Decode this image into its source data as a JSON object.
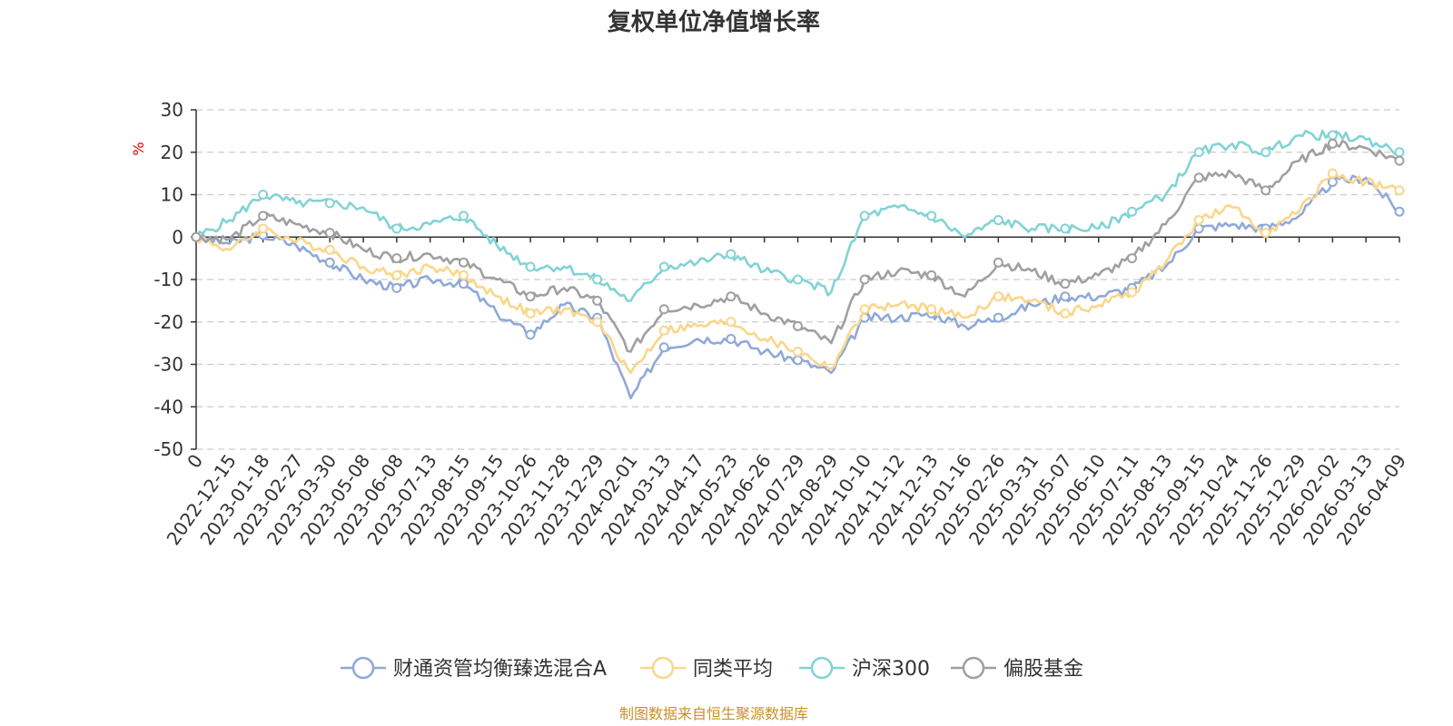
{
  "chart_data": {
    "type": "line",
    "title": "复权单位净值增长率",
    "ylabel": "%",
    "ylim": [
      -50,
      30
    ],
    "yticks": [
      30,
      20,
      10,
      0,
      -10,
      -20,
      -30,
      -40,
      -50
    ],
    "x_labels": [
      "0",
      "2022-12-15",
      "2023-01-18",
      "2023-02-27",
      "2023-03-30",
      "2023-05-08",
      "2023-06-08",
      "2023-07-13",
      "2023-08-15",
      "2023-09-15",
      "2023-10-26",
      "2023-11-28",
      "2023-12-29",
      "2024-02-01",
      "2024-03-13",
      "2024-04-17",
      "2024-05-23",
      "2024-06-26",
      "2024-07-29",
      "2024-08-29",
      "2024-10-10",
      "2024-11-12",
      "2024-12-13",
      "2025-01-16",
      "2025-02-26",
      "2025-03-31",
      "2025-05-07",
      "2025-06-10",
      "2025-07-11",
      "2025-08-13",
      "2025-09-15",
      "2025-10-24",
      "2025-11-26",
      "2025-12-29",
      "2026-02-02",
      "2026-03-13",
      "2026-04-09"
    ],
    "series": [
      {
        "name": "财通资管均衡臻选混合A",
        "color": "#8fa9d8",
        "values": [
          0,
          -1.5,
          0.5,
          -2,
          -6,
          -10,
          -12,
          -10,
          -11,
          -18,
          -23,
          -16,
          -19,
          -38,
          -26,
          -24,
          -24,
          -27,
          -29,
          -32,
          -19,
          -19,
          -18,
          -21,
          -19,
          -16,
          -14,
          -14,
          -12,
          -7,
          2,
          3,
          2,
          5,
          13,
          14,
          6
        ]
      },
      {
        "name": "同类平均",
        "color": "#fad68a",
        "values": [
          0,
          -3,
          2,
          -1,
          -3,
          -7,
          -9,
          -7,
          -9,
          -14,
          -18,
          -17,
          -20,
          -32,
          -22,
          -21,
          -20,
          -24,
          -27,
          -31,
          -17,
          -16,
          -17,
          -19,
          -14,
          -15,
          -18,
          -16,
          -13,
          -6,
          4,
          7,
          1,
          6,
          15,
          13,
          11
        ]
      },
      {
        "name": "沪深300",
        "color": "#82d3d4",
        "values": [
          0,
          4,
          10,
          8,
          8,
          7,
          2,
          3,
          5,
          -2,
          -7,
          -7,
          -10,
          -15,
          -7,
          -6,
          -4,
          -8,
          -10,
          -13,
          5,
          7,
          5,
          0,
          4,
          2,
          2,
          2,
          6,
          10,
          20,
          22,
          20,
          24,
          24,
          23,
          20
        ]
      },
      {
        "name": "偏股基金",
        "color": "#a0a0a0",
        "values": [
          0,
          -0.5,
          5,
          3,
          1,
          -3,
          -5,
          -4,
          -6,
          -10,
          -14,
          -12,
          -15,
          -27,
          -17,
          -16,
          -14,
          -18,
          -21,
          -25,
          -10,
          -8,
          -9,
          -14,
          -6,
          -8,
          -11,
          -9,
          -5,
          3,
          14,
          15,
          11,
          18,
          22,
          21,
          18
        ]
      }
    ],
    "legend_position": "bottom-center"
  },
  "footer": {
    "source": "制图数据来自恒生聚源数据库"
  }
}
